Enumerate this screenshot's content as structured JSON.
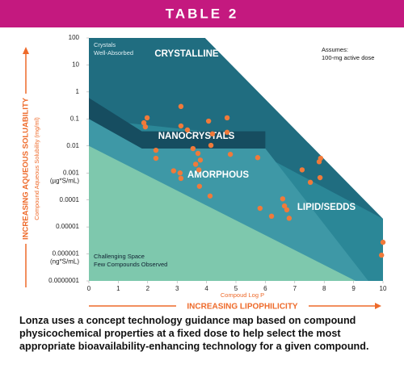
{
  "header": {
    "title": "TABLE 2"
  },
  "chart_data": {
    "type": "scatter",
    "log_y": true,
    "xlim": [
      0,
      10
    ],
    "ylim": [
      1e-07,
      100
    ],
    "xticks": [
      0,
      1,
      2,
      3,
      4,
      5,
      6,
      7,
      8,
      9,
      10
    ],
    "yticks": [
      100,
      10,
      1,
      0.1,
      0.01,
      0.001,
      0.0001,
      1e-05,
      1e-06,
      {
        "value": 1e-07,
        "label": "0.0000001"
      }
    ],
    "ytick_units": [
      {
        "value": 0.001,
        "label": "(µg*S/mL)"
      },
      {
        "value": 1e-06,
        "label": "(ng*S/mL)"
      }
    ],
    "x_label": "Compoud Log P",
    "x_arrow_label": "INCREASING LIPOPHILICITY",
    "y_label": "Compound Aqueous Solubility (mg/ml)",
    "y_arrow_label": "INCREASING AQUEOUS SOLUABILITY",
    "regions": [
      {
        "name": "CRYSTALLINE",
        "color": "#206d80",
        "points": [
          [
            0,
            100
          ],
          [
            3.95,
            100
          ],
          [
            10,
            2e-05
          ],
          [
            10,
            1e-07
          ],
          [
            0,
            1e-07
          ]
        ]
      },
      {
        "name": "LIPID/SEDDS",
        "color": "#2b8797",
        "points": [
          [
            0,
            0.1
          ],
          [
            4.5,
            0.03
          ],
          [
            10,
            2e-05
          ],
          [
            10,
            1e-07
          ],
          [
            0,
            1e-07
          ]
        ]
      },
      {
        "name": "NANOCRYSTALS",
        "color": "#164d60",
        "points": [
          [
            0,
            0.6
          ],
          [
            1.8,
            0.035
          ],
          [
            6,
            0.035
          ],
          [
            6,
            0.008
          ],
          [
            1.8,
            0.008
          ],
          [
            0,
            0.1
          ]
        ]
      },
      {
        "name": "AMORPHOUS",
        "color": "#3e98a6",
        "points": [
          [
            0,
            0.1
          ],
          [
            1.8,
            0.008
          ],
          [
            6,
            0.008
          ],
          [
            9.5,
            1e-07
          ],
          [
            0,
            1e-07
          ]
        ]
      },
      {
        "name": "Challenging Space",
        "color": "#7ec8ad",
        "points": [
          [
            0,
            0.01
          ],
          [
            9.07,
            1e-07
          ],
          [
            0,
            1e-07
          ]
        ]
      }
    ],
    "annotations": [
      [
        "Crystals",
        "Well-Absorbed"
      ],
      [
        "Assumes:",
        "100-mg active dose"
      ],
      [
        "Challenging Space",
        "Few Compounds Observed"
      ]
    ],
    "series": [
      {
        "color": "#f07a3a",
        "x": [
          1.87,
          1.98,
          1.92,
          3.13,
          3.13,
          3.35,
          2.28,
          2.28,
          2.88,
          3.1,
          3.13,
          3.54,
          3.71,
          3.79,
          3.63,
          3.74,
          4.15,
          4.2,
          4.07,
          4.7,
          4.7,
          4.81,
          3.76,
          4.12,
          5.74,
          5.82,
          6.21,
          6.59,
          6.65,
          6.73,
          6.81,
          7.25,
          7.53,
          7.86,
          7.83,
          7.88,
          10,
          9.95
        ],
        "values": [
          0.072,
          0.11,
          0.051,
          0.29,
          0.055,
          0.039,
          0.0069,
          0.0035,
          0.0012,
          0.001,
          0.00063,
          0.008,
          0.0053,
          0.003,
          0.0021,
          0.0013,
          0.0105,
          0.028,
          0.083,
          0.11,
          0.032,
          0.0049,
          0.00032,
          0.00014,
          0.0037,
          4.9e-05,
          2.5e-05,
          0.00011,
          6e-05,
          4.3e-05,
          2.1e-05,
          0.0013,
          0.00045,
          0.00067,
          0.0026,
          0.0035,
          2.7e-06,
          9e-07
        ]
      }
    ]
  },
  "caption": "Lonza uses a concept technology guidance map based on compound physicochemical properties at a fixed dose to help select the most appropriate bioavailability-enhancing technology for a given compound."
}
